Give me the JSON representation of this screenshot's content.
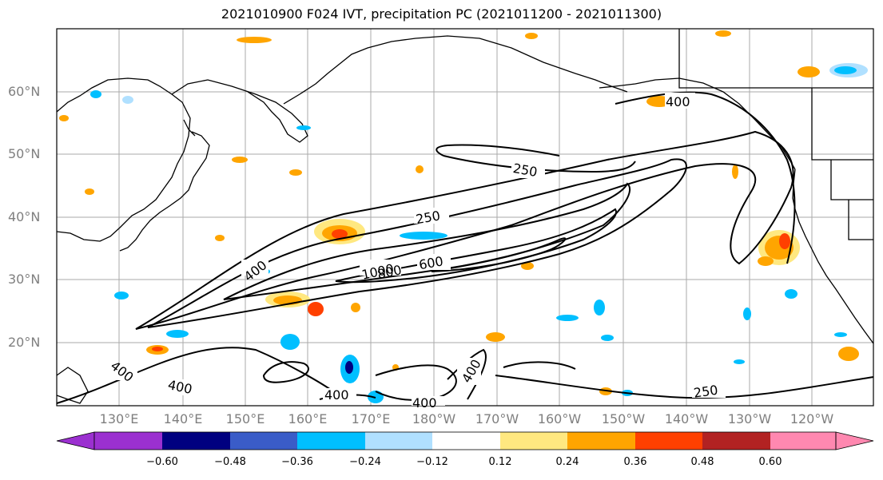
{
  "title": "2021010900 F024 IVT, precipitation PC (2021011200 - 2021011300)",
  "map": {
    "region": "North Pacific",
    "projection": "equirectangular",
    "lon_range": [
      120,
      248
    ],
    "lat_range": [
      10,
      70
    ],
    "gridlines": true,
    "lat_labels": [
      "60°N",
      "50°N",
      "40°N",
      "30°N",
      "20°N"
    ],
    "lon_labels": [
      "130°E",
      "140°E",
      "150°E",
      "160°E",
      "170°E",
      "180°W",
      "170°W",
      "160°W",
      "150°W",
      "140°W",
      "130°W",
      "120°W"
    ],
    "contour_labels": [
      {
        "text": "400",
        "id": "c400-gulf"
      },
      {
        "text": "250",
        "id": "c250-north"
      },
      {
        "text": "250",
        "id": "c250-mid"
      },
      {
        "text": "400",
        "id": "c400-west"
      },
      {
        "text": "1000",
        "id": "c1000"
      },
      {
        "text": "800",
        "id": "c800"
      },
      {
        "text": "600",
        "id": "c600"
      },
      {
        "text": "400",
        "id": "c400-sw"
      },
      {
        "text": "400",
        "id": "c400-s1"
      },
      {
        "text": "400",
        "id": "c400-s2"
      },
      {
        "text": "400",
        "id": "c400-s3"
      },
      {
        "text": "400",
        "id": "c400-s4"
      },
      {
        "text": "250",
        "id": "c250-se"
      }
    ]
  },
  "colorbar": {
    "colors": [
      "#9b30d0",
      "#000080",
      "#3a5cc8",
      "#00bfff",
      "#b0e0ff",
      "#ffffff",
      "#ffe880",
      "#ffa500",
      "#ff4000",
      "#b22222",
      "#ff88b0"
    ],
    "ticks": [
      "−0.60",
      "−0.48",
      "−0.36",
      "−0.24",
      "−0.12",
      "0.12",
      "0.24",
      "0.36",
      "0.48",
      "0.60"
    ]
  }
}
